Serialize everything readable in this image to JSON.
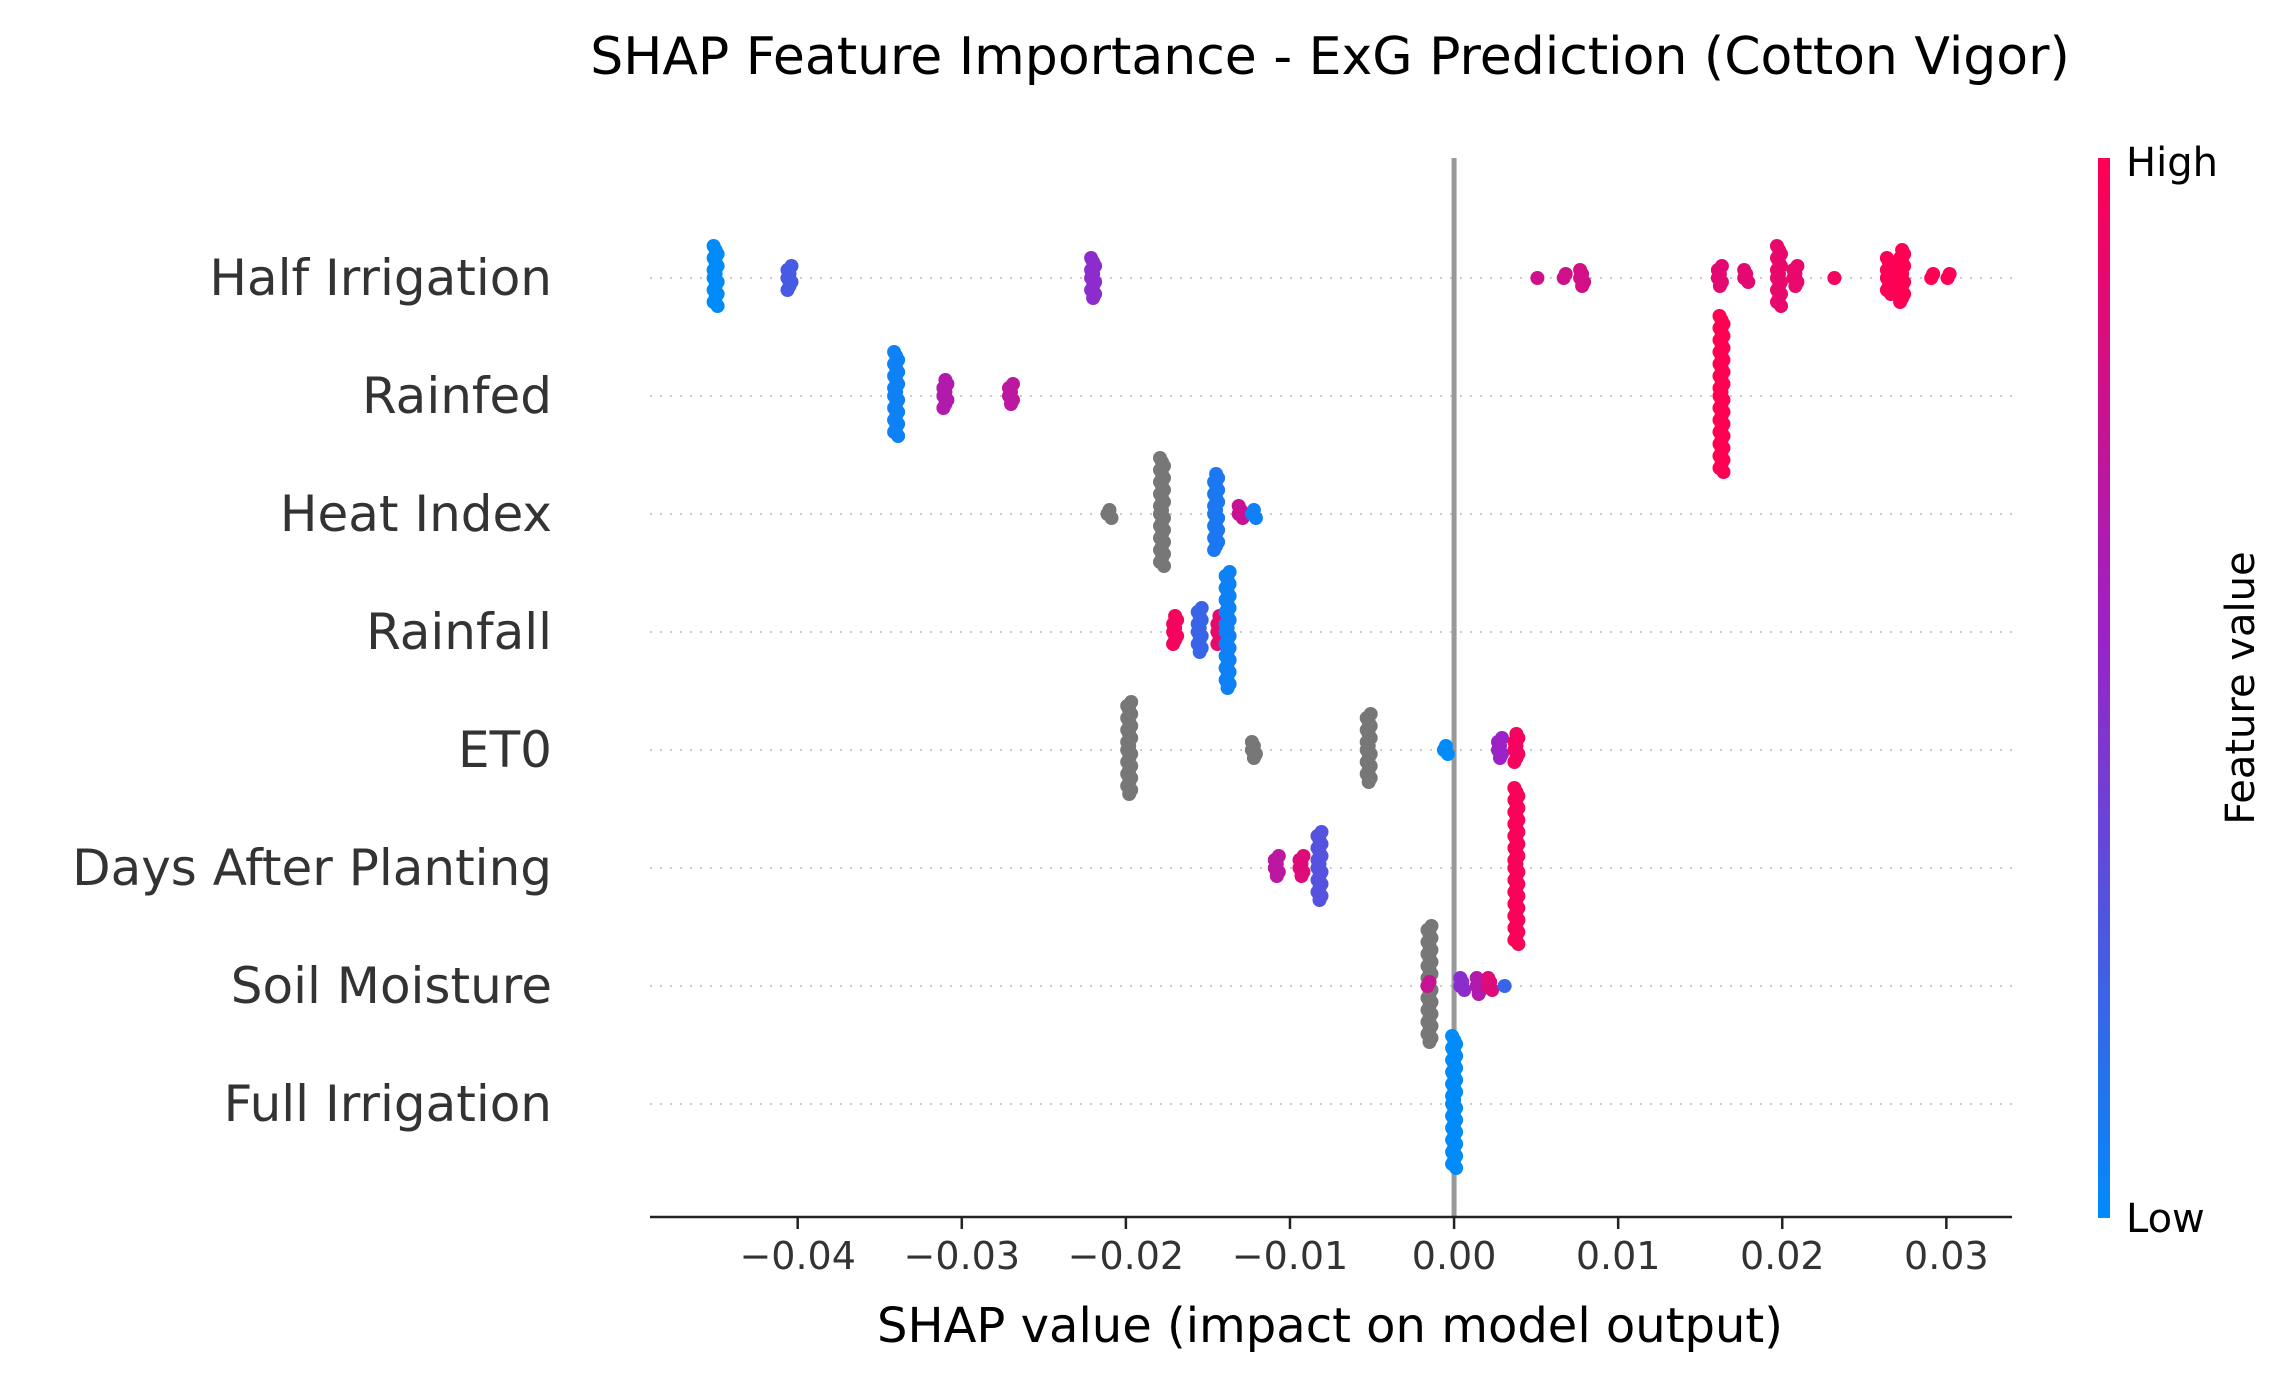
{
  "chart_data": {
    "type": "scatter",
    "subtype": "shap-beeswarm",
    "title": "SHAP Feature Importance - ExG Prediction (Cotton Vigor)",
    "xlabel": "SHAP value (impact on model output)",
    "xlim": [
      -0.049,
      0.034
    ],
    "xticks": [
      -0.04,
      -0.03,
      -0.02,
      -0.01,
      0.0,
      0.01,
      0.02,
      0.03
    ],
    "xtick_labels": [
      "−0.04",
      "−0.03",
      "−0.02",
      "−0.01",
      "0.00",
      "0.01",
      "0.02",
      "0.03"
    ],
    "colorbar": {
      "label": "Feature value",
      "high_label": "High",
      "low_label": "Low",
      "low_color": "#008bfb",
      "high_color": "#ff0052"
    },
    "missing_color": "#777777",
    "zero_line_color": "#999999",
    "features": [
      {
        "name": "Half Irrigation",
        "clusters": [
          {
            "x": -0.045,
            "n": 16,
            "fv": 0.0
          },
          {
            "x": -0.0405,
            "n": 7,
            "fv": 0.25
          },
          {
            "x": -0.022,
            "n": 11,
            "fv": 0.5
          },
          {
            "x": 0.0052,
            "n": 1,
            "fv": 0.78
          },
          {
            "x": 0.0068,
            "n": 2,
            "fv": 0.78
          },
          {
            "x": 0.0078,
            "n": 5,
            "fv": 0.8
          },
          {
            "x": 0.0162,
            "n": 6,
            "fv": 0.88
          },
          {
            "x": 0.0178,
            "n": 4,
            "fv": 0.88
          },
          {
            "x": 0.0198,
            "n": 16,
            "fv": 0.9
          },
          {
            "x": 0.0208,
            "n": 6,
            "fv": 0.9
          },
          {
            "x": 0.0233,
            "n": 1,
            "fv": 0.95
          },
          {
            "x": 0.0265,
            "n": 10,
            "fv": 0.98
          },
          {
            "x": 0.0273,
            "n": 14,
            "fv": 1.0
          },
          {
            "x": 0.0292,
            "n": 2,
            "fv": 1.0
          },
          {
            "x": 0.0302,
            "n": 2,
            "fv": 1.0
          }
        ]
      },
      {
        "name": "Rainfed",
        "clusters": [
          {
            "x": -0.034,
            "n": 22,
            "fv": 0.05
          },
          {
            "x": -0.031,
            "n": 8,
            "fv": 0.65
          },
          {
            "x": -0.027,
            "n": 6,
            "fv": 0.7
          },
          {
            "x": 0.0163,
            "n": 40,
            "fv": 1.0
          }
        ]
      },
      {
        "name": "Heat Index",
        "clusters": [
          {
            "x": -0.021,
            "n": 3,
            "fv": null
          },
          {
            "x": -0.0178,
            "n": 28,
            "fv": null
          },
          {
            "x": -0.0145,
            "n": 20,
            "fv": 0.1
          },
          {
            "x": -0.013,
            "n": 4,
            "fv": 0.75
          },
          {
            "x": -0.0122,
            "n": 3,
            "fv": 0.05
          }
        ]
      },
      {
        "name": "Rainfall",
        "clusters": [
          {
            "x": -0.017,
            "n": 8,
            "fv": 0.95
          },
          {
            "x": -0.0155,
            "n": 12,
            "fv": 0.2
          },
          {
            "x": -0.0143,
            "n": 8,
            "fv": 0.9
          },
          {
            "x": -0.0138,
            "n": 30,
            "fv": 0.05
          }
        ]
      },
      {
        "name": "ET0",
        "clusters": [
          {
            "x": -0.0198,
            "n": 24,
            "fv": null
          },
          {
            "x": -0.0122,
            "n": 5,
            "fv": null
          },
          {
            "x": -0.0052,
            "n": 18,
            "fv": null
          },
          {
            "x": -0.0005,
            "n": 3,
            "fv": 0.0
          },
          {
            "x": 0.0028,
            "n": 6,
            "fv": 0.55
          },
          {
            "x": 0.0038,
            "n": 8,
            "fv": 0.95
          }
        ]
      },
      {
        "name": "Days After Planting",
        "clusters": [
          {
            "x": -0.0108,
            "n": 6,
            "fv": 0.7
          },
          {
            "x": -0.0093,
            "n": 6,
            "fv": 0.85
          },
          {
            "x": -0.0082,
            "n": 18,
            "fv": 0.3
          },
          {
            "x": 0.0038,
            "n": 40,
            "fv": 0.97
          }
        ]
      },
      {
        "name": "Soil Moisture",
        "clusters": [
          {
            "x": -0.0015,
            "n": 30,
            "fv": null
          },
          {
            "x": -0.0015,
            "n": 2,
            "fv": 0.75
          },
          {
            "x": 0.0005,
            "n": 4,
            "fv": 0.5
          },
          {
            "x": 0.0015,
            "n": 5,
            "fv": 0.65
          },
          {
            "x": 0.0022,
            "n": 4,
            "fv": 0.85
          },
          {
            "x": 0.0032,
            "n": 1,
            "fv": 0.2
          }
        ]
      },
      {
        "name": "Full Irrigation",
        "clusters": [
          {
            "x": 0.0,
            "n": 34,
            "fv": 0.0
          }
        ]
      }
    ]
  }
}
